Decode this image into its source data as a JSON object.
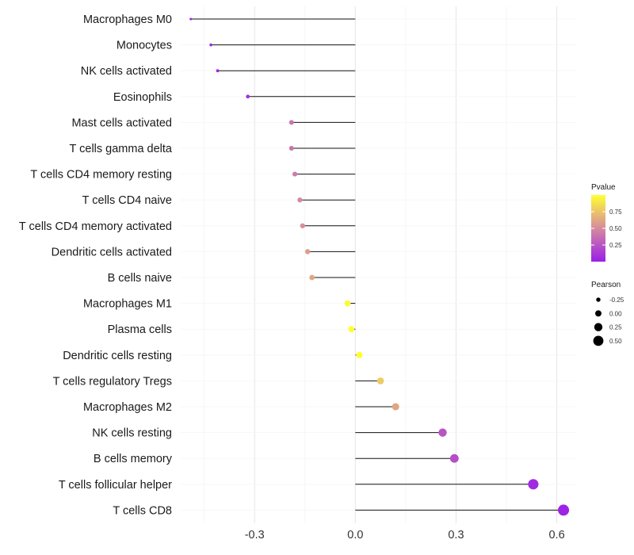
{
  "chart_data": {
    "type": "lollipop",
    "categories": [
      "Macrophages M0",
      "Monocytes",
      "NK cells activated",
      "Eosinophils",
      "Mast cells activated",
      "T cells gamma delta",
      "T cells CD4 memory resting",
      "T cells CD4 naive",
      "T cells CD4 memory activated",
      "Dendritic cells activated",
      "B cells naive",
      "Macrophages M1",
      "Plasma cells",
      "Dendritic cells resting",
      "T cells regulatory  Tregs ",
      "Macrophages M2",
      "NK cells resting",
      "B cells memory",
      "T cells follicular helper",
      "T cells CD8"
    ],
    "pearson": [
      -0.49,
      -0.43,
      -0.41,
      -0.32,
      -0.19,
      -0.19,
      -0.18,
      -0.165,
      -0.157,
      -0.142,
      -0.129,
      -0.023,
      -0.012,
      0.012,
      0.075,
      0.12,
      0.26,
      0.295,
      0.53,
      0.62
    ],
    "pvalue": [
      0.02,
      0.05,
      0.05,
      0.08,
      0.4,
      0.4,
      0.43,
      0.5,
      0.52,
      0.58,
      0.62,
      0.98,
      1.0,
      1.0,
      0.78,
      0.62,
      0.25,
      0.22,
      0.05,
      0.02
    ],
    "xlim": [
      -0.52,
      0.66
    ],
    "xticks": [
      -0.3,
      0.0,
      0.3,
      0.6
    ],
    "xtick_labels": [
      "-0.3",
      "0.0",
      "0.3",
      "0.6"
    ],
    "gridlines": true,
    "color_legend": {
      "title": "Pvalue",
      "ticks": [
        0.25,
        0.5,
        0.75
      ],
      "tick_labels": [
        "0.25",
        "0.50",
        "0.75"
      ],
      "low_color": "#9b1fe8",
      "mid_color": "#d68a9e",
      "high_color": "#ffff33"
    },
    "size_legend": {
      "title": "Pearson",
      "values": [
        -0.25,
        0.0,
        0.25,
        0.5
      ],
      "labels": [
        "-0.25",
        "0.00",
        "0.25",
        "0.50"
      ]
    },
    "legend_position": "right"
  }
}
